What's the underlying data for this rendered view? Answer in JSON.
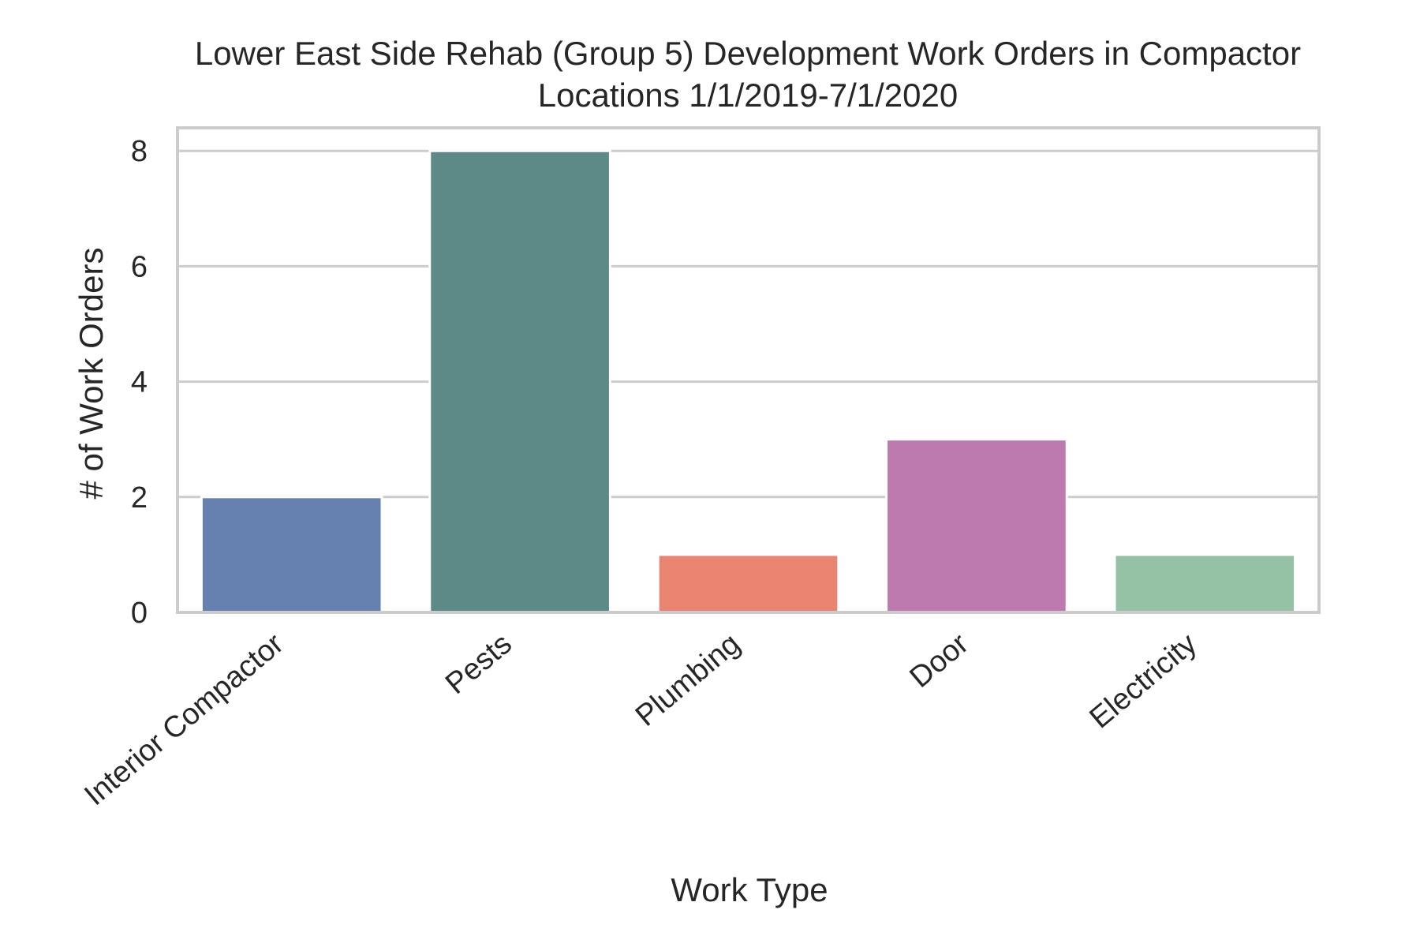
{
  "chart_data": {
    "type": "bar",
    "title_lines": [
      "Lower East Side Rehab (Group 5) Development Work Orders in Compactor",
      "Locations 1/1/2019-7/1/2020"
    ],
    "xlabel": "Work Type",
    "ylabel": "# of Work Orders",
    "categories": [
      "Interior Compactor",
      "Pests",
      "Plumbing",
      "Door",
      "Electricity"
    ],
    "values": [
      2,
      8,
      1,
      3,
      1
    ],
    "colors": [
      "#6680b0",
      "#5d8a87",
      "#e8846f",
      "#bc7aaf",
      "#95c1a4"
    ],
    "ylim": [
      0,
      8.4
    ],
    "yticks": [
      0,
      2,
      4,
      6,
      8
    ],
    "grid": true,
    "legend": "none"
  }
}
